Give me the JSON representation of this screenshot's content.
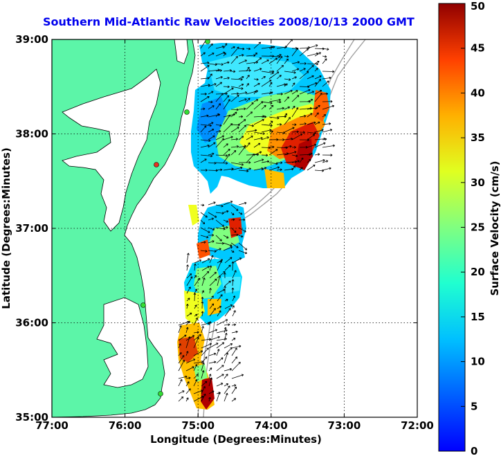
{
  "title": "Southern Mid-Atlantic Raw Velocities 2008/10/13 2000 GMT",
  "x_axis": {
    "label": "Longitude (Degrees:Minutes)",
    "ticks": [
      "77:00",
      "76:00",
      "75:00",
      "74:00",
      "73:00",
      "72:00"
    ]
  },
  "y_axis": {
    "label": "Latitude (Degrees:Minutes)",
    "ticks": [
      "39:00",
      "38:00",
      "37:00",
      "36:00",
      "35:00"
    ]
  },
  "colorbar": {
    "label": "Surface Velocity (cm/s)",
    "ticks": [
      "50",
      "45",
      "40",
      "35",
      "30",
      "25",
      "20",
      "15",
      "10",
      "5",
      "0"
    ],
    "min": 0,
    "max": 50,
    "colormap": "jet"
  },
  "colors": {
    "title": "#0000ee",
    "land": "#5cf5a8",
    "ocean": "#ffffff",
    "bathymetry": "#a0a0a0",
    "station_marker": "#33dd33",
    "station_marker_alt": "#e83020"
  },
  "map": {
    "lon_range": [
      -77,
      -72
    ],
    "lat_range": [
      35,
      39
    ],
    "grid": true
  }
}
